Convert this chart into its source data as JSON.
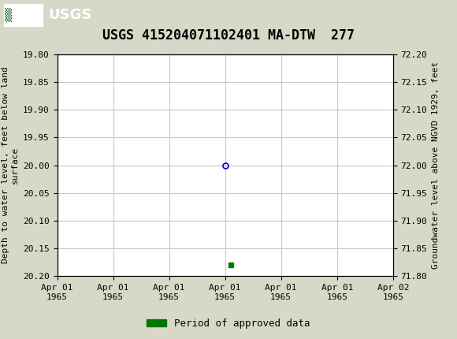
{
  "title": "USGS 415204071102401 MA-DTW  277",
  "header_color": "#1a6b3c",
  "background_color": "#d8d8c8",
  "plot_bg_color": "#ffffff",
  "grid_color": "#c8c8c8",
  "ylim_left_bottom": 20.2,
  "ylim_left_top": 19.8,
  "ylim_right_bottom": 71.8,
  "ylim_right_top": 72.2,
  "yticks_left": [
    19.8,
    19.85,
    19.9,
    19.95,
    20.0,
    20.05,
    20.1,
    20.15,
    20.2
  ],
  "yticks_right": [
    72.2,
    72.15,
    72.1,
    72.05,
    72.0,
    71.95,
    71.9,
    71.85,
    71.8
  ],
  "ylabel_left": "Depth to water level, feet below land\nsurface",
  "ylabel_right": "Groundwater level above NGVD 1929, feet",
  "xlim_min": 0,
  "xlim_max": 6,
  "xtick_positions": [
    0,
    1,
    2,
    3,
    4,
    5,
    6
  ],
  "xtick_labels": [
    "Apr 01\n1965",
    "Apr 01\n1965",
    "Apr 01\n1965",
    "Apr 01\n1965",
    "Apr 01\n1965",
    "Apr 01\n1965",
    "Apr 02\n1965"
  ],
  "data_point_x": 3.0,
  "data_point_y": 20.0,
  "data_point_color": "#0000cc",
  "data_point_marker": "o",
  "data_point_size": 5,
  "approved_x": 3.1,
  "approved_y": 20.18,
  "approved_color": "#007700",
  "approved_marker": "s",
  "approved_size": 4,
  "legend_label": "Period of approved data",
  "legend_color": "#007700",
  "font_family": "monospace",
  "title_fontsize": 12,
  "tick_fontsize": 8,
  "ylabel_fontsize": 8,
  "legend_fontsize": 9
}
